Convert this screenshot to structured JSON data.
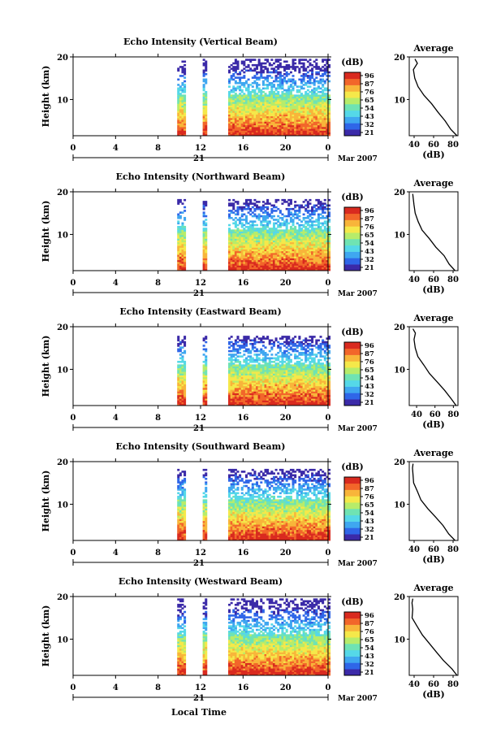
{
  "figure": {
    "month_label": "Mar 2007",
    "xlabel": "Local Time",
    "colorbar_label": "(dB)",
    "colorbar_ticks": [
      "96",
      "87",
      "76",
      "65",
      "54",
      "43",
      "32",
      "21"
    ],
    "colors": [
      "#3b2aa8",
      "#2f66e8",
      "#3fa7f0",
      "#55d8e8",
      "#6fe3b3",
      "#b7ec6a",
      "#f5e84a",
      "#f8b53a",
      "#f2662a",
      "#d92a1f"
    ]
  },
  "chart_data": [
    {
      "type": "heatmap",
      "title": "Echo Intensity (Vertical Beam)",
      "ylabel": "Height (km)",
      "xlim": [
        0,
        24
      ],
      "ylim": [
        1.5,
        20
      ],
      "xticks": [
        "0",
        "4",
        "8",
        "12",
        "16",
        "20",
        "0"
      ],
      "yticks": [
        "10",
        "20"
      ],
      "day_label": "21",
      "data_gaps_hours": [
        [
          0,
          9.7
        ],
        [
          10.5,
          12.2
        ],
        [
          12.6,
          14.6
        ]
      ],
      "echo_top_km": 19.5,
      "average": {
        "title": "Average",
        "xlabel": "(dB)",
        "xticks": [
          "40",
          "60",
          "80"
        ],
        "xlim": [
          35,
          85
        ],
        "height_km": [
          1.5,
          3,
          5,
          7,
          9,
          11,
          13,
          15,
          17,
          18.5,
          19.5
        ],
        "db": [
          84,
          78,
          71,
          64,
          57,
          50,
          44,
          41,
          40,
          44,
          42
        ]
      }
    },
    {
      "type": "heatmap",
      "title": "Echo Intensity (Northward Beam)",
      "ylabel": "Height (km)",
      "xlim": [
        0,
        24
      ],
      "ylim": [
        1.5,
        20
      ],
      "xticks": [
        "0",
        "4",
        "8",
        "12",
        "16",
        "20",
        "0"
      ],
      "yticks": [
        "10",
        "20"
      ],
      "day_label": "21",
      "data_gaps_hours": [
        [
          0,
          9.7
        ],
        [
          10.5,
          12.2
        ],
        [
          12.6,
          14.6
        ]
      ],
      "echo_top_km": 18.5,
      "average": {
        "title": "Average",
        "xlabel": "(dB)",
        "xticks": [
          "40",
          "60",
          "80"
        ],
        "xlim": [
          35,
          85
        ],
        "height_km": [
          1.5,
          3,
          5,
          7,
          9,
          11,
          13,
          15,
          17,
          18.5,
          19.5
        ],
        "db": [
          82,
          77,
          70,
          62,
          55,
          48,
          43,
          40,
          39,
          38,
          38
        ]
      }
    },
    {
      "type": "heatmap",
      "title": "Echo Intensity (Eastward Beam)",
      "ylabel": "Height (km)",
      "xlim": [
        0,
        24
      ],
      "ylim": [
        1.5,
        20
      ],
      "xticks": [
        "0",
        "4",
        "8",
        "12",
        "16",
        "20",
        "0"
      ],
      "yticks": [
        "10",
        "20"
      ],
      "day_label": "21",
      "data_gaps_hours": [
        [
          0,
          9.7
        ],
        [
          10.5,
          12.2
        ],
        [
          12.6,
          14.6
        ]
      ],
      "echo_top_km": 18,
      "average": {
        "title": "Average",
        "xlabel": "(dB)",
        "xticks": [
          "40",
          "60",
          "80"
        ],
        "xlim": [
          32,
          85
        ],
        "height_km": [
          1.5,
          3,
          5,
          7,
          9,
          11,
          13,
          15,
          17,
          18.5,
          19.5
        ],
        "db": [
          83,
          78,
          70,
          62,
          54,
          47,
          41,
          38,
          37,
          38,
          37
        ]
      }
    },
    {
      "type": "heatmap",
      "title": "Echo Intensity (Southward Beam)",
      "ylabel": "Height (km)",
      "xlim": [
        0,
        24
      ],
      "ylim": [
        1.5,
        20
      ],
      "xticks": [
        "0",
        "4",
        "8",
        "12",
        "16",
        "20",
        "0"
      ],
      "yticks": [
        "10",
        "20"
      ],
      "day_label": "21",
      "data_gaps_hours": [
        [
          0,
          9.7
        ],
        [
          10.5,
          12.2
        ],
        [
          12.6,
          14.6
        ]
      ],
      "echo_top_km": 18.5,
      "average": {
        "title": "Average",
        "xlabel": "(dB)",
        "xticks": [
          "40",
          "60",
          "80"
        ],
        "xlim": [
          35,
          85
        ],
        "height_km": [
          1.5,
          3,
          5,
          7,
          9,
          11,
          13,
          15,
          17,
          18.5,
          19.5
        ],
        "db": [
          82,
          76,
          69,
          62,
          55,
          48,
          43,
          40,
          39,
          38,
          39
        ]
      }
    },
    {
      "type": "heatmap",
      "title": "Echo Intensity (Westward Beam)",
      "ylabel": "Height (km)",
      "xlim": [
        0,
        24
      ],
      "ylim": [
        1.5,
        20
      ],
      "xticks": [
        "0",
        "4",
        "8",
        "12",
        "16",
        "20",
        "0"
      ],
      "yticks": [
        "10",
        "20"
      ],
      "day_label": "21",
      "data_gaps_hours": [
        [
          0,
          9.7
        ],
        [
          10.5,
          12.2
        ],
        [
          12.6,
          14.6
        ]
      ],
      "echo_top_km": 19.5,
      "average": {
        "title": "Average",
        "xlabel": "(dB)",
        "xticks": [
          "40",
          "60",
          "80"
        ],
        "xlim": [
          35,
          85
        ],
        "height_km": [
          1.5,
          3,
          5,
          7,
          9,
          11,
          13,
          15,
          17,
          18.5,
          19.5
        ],
        "db": [
          84,
          79,
          71,
          63,
          56,
          48,
          42,
          39,
          38,
          37,
          39
        ]
      }
    }
  ]
}
